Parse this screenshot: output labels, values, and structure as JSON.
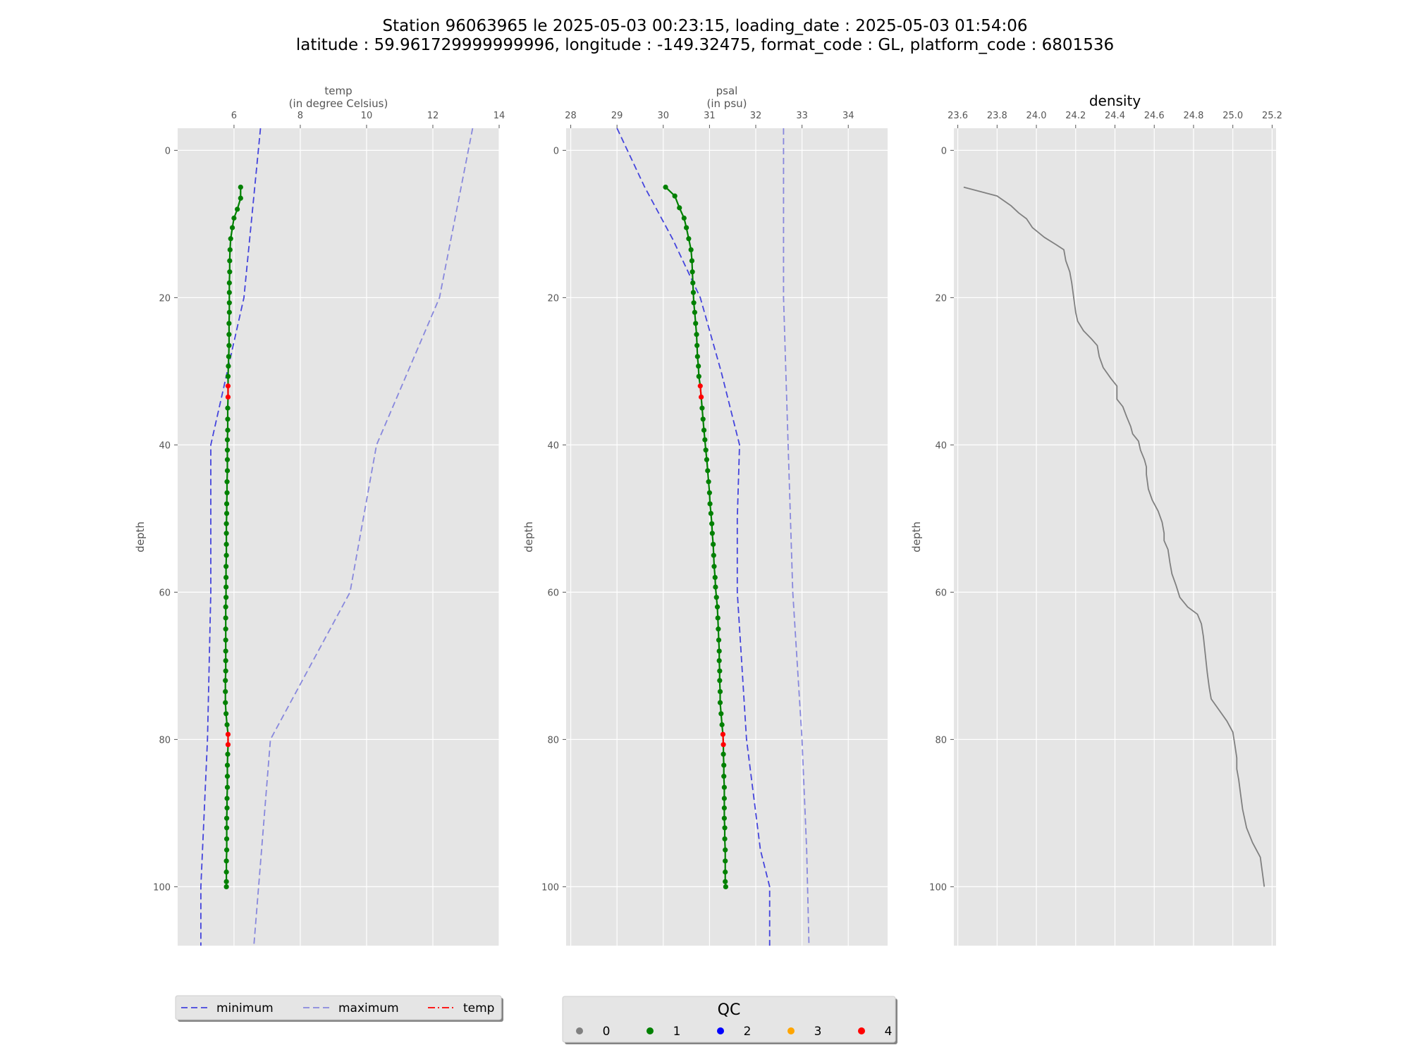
{
  "header": {
    "line1": "Station 96063965 le 2025-05-03 00:23:15, loading_date : 2025-05-03 01:54:06",
    "line2": "latitude : 59.961729999999996, longitude : -149.32475, format_code : GL, platform_code : 6801536"
  },
  "colors": {
    "plot_bg": "#e5e5e5",
    "grid": "#ffffff",
    "minimum": "#4444dd",
    "maximum": "#8888dd",
    "qc0": "#808080",
    "qc1": "#008000",
    "qc2": "#0000ff",
    "qc3": "#ffa500",
    "qc4": "#ff0000",
    "density_line": "#808080",
    "legend_temp": "#ff0000"
  },
  "legend_lines": {
    "items": [
      {
        "label": "minimum",
        "style": "dashed-blue"
      },
      {
        "label": "maximum",
        "style": "dashed-lightblue"
      },
      {
        "label": "temp",
        "style": "dashdot-red"
      }
    ]
  },
  "legend_qc": {
    "title": "QC",
    "items": [
      {
        "label": "0",
        "color": "#808080"
      },
      {
        "label": "1",
        "color": "#008000"
      },
      {
        "label": "2",
        "color": "#0000ff"
      },
      {
        "label": "3",
        "color": "#ffa500"
      },
      {
        "label": "4",
        "color": "#ff0000"
      }
    ]
  },
  "chart_data": [
    {
      "type": "line",
      "title_lines": [
        "temp",
        "(in degree Celsius)"
      ],
      "ylabel": "depth",
      "xlim": [
        4.3,
        14.0
      ],
      "ylim": [
        108,
        -3
      ],
      "xticks": [
        6,
        8,
        10,
        12,
        14
      ],
      "yticks": [
        0,
        20,
        40,
        60,
        80,
        100
      ],
      "grid": true,
      "x_axis_position": "top",
      "y_inverted": true,
      "series": [
        {
          "name": "minimum",
          "role": "minimum",
          "points": [
            [
              6.8,
              -3
            ],
            [
              6.3,
              20
            ],
            [
              5.3,
              40
            ],
            [
              5.3,
              60
            ],
            [
              5.2,
              80
            ],
            [
              5.0,
              100
            ],
            [
              5.0,
              108
            ]
          ]
        },
        {
          "name": "maximum",
          "role": "maximum",
          "points": [
            [
              13.2,
              -3
            ],
            [
              12.2,
              20
            ],
            [
              10.3,
              40
            ],
            [
              9.5,
              60
            ],
            [
              7.1,
              80
            ],
            [
              6.6,
              108
            ]
          ]
        },
        {
          "name": "temp",
          "role": "measured",
          "depths": [
            5,
            6.5,
            8,
            9.2,
            10.5,
            12,
            13.5,
            15,
            16.5,
            18,
            19.3,
            20.7,
            22,
            23.5,
            25,
            26.5,
            28,
            29.3,
            30.7,
            32,
            33.5,
            35,
            36.5,
            38,
            39.3,
            40.7,
            42,
            43.5,
            45,
            46.5,
            48,
            49.3,
            50.7,
            52,
            53.5,
            55,
            56.5,
            58,
            59.3,
            60.7,
            62,
            63.5,
            65,
            66.5,
            68,
            69.3,
            70.7,
            72,
            73.5,
            75,
            76.5,
            78,
            79.3,
            80.7,
            82,
            83.5,
            85,
            86.5,
            88,
            89.3,
            90.7,
            92,
            93.5,
            95,
            96.5,
            98,
            99.3,
            100
          ],
          "values": [
            6.2,
            6.2,
            6.1,
            6.0,
            5.95,
            5.9,
            5.88,
            5.87,
            5.87,
            5.86,
            5.86,
            5.86,
            5.86,
            5.85,
            5.85,
            5.85,
            5.84,
            5.83,
            5.82,
            5.82,
            5.82,
            5.81,
            5.81,
            5.81,
            5.8,
            5.8,
            5.8,
            5.8,
            5.79,
            5.79,
            5.78,
            5.78,
            5.77,
            5.77,
            5.77,
            5.77,
            5.76,
            5.76,
            5.76,
            5.76,
            5.75,
            5.75,
            5.75,
            5.75,
            5.75,
            5.75,
            5.75,
            5.74,
            5.74,
            5.74,
            5.76,
            5.79,
            5.82,
            5.82,
            5.81,
            5.8,
            5.8,
            5.8,
            5.79,
            5.79,
            5.78,
            5.78,
            5.78,
            5.78,
            5.77,
            5.77,
            5.77,
            5.77
          ],
          "qc": [
            1,
            1,
            1,
            1,
            1,
            1,
            1,
            1,
            1,
            1,
            1,
            1,
            1,
            1,
            1,
            1,
            1,
            1,
            1,
            4,
            4,
            1,
            1,
            1,
            1,
            1,
            1,
            1,
            1,
            1,
            1,
            1,
            1,
            1,
            1,
            1,
            1,
            1,
            1,
            1,
            1,
            1,
            1,
            1,
            1,
            1,
            1,
            1,
            1,
            1,
            1,
            1,
            4,
            4,
            1,
            1,
            1,
            1,
            1,
            1,
            1,
            1,
            1,
            1,
            1,
            1,
            1,
            1
          ]
        }
      ]
    },
    {
      "type": "line",
      "title_lines": [
        "psal",
        "(in psu)"
      ],
      "ylabel": "depth",
      "xlim": [
        27.9,
        34.85
      ],
      "ylim": [
        108,
        -3
      ],
      "xticks": [
        28,
        29,
        30,
        31,
        32,
        33,
        34
      ],
      "yticks": [
        0,
        20,
        40,
        60,
        80,
        100
      ],
      "grid": true,
      "x_axis_position": "top",
      "y_inverted": true,
      "series": [
        {
          "name": "minimum",
          "role": "minimum",
          "points": [
            [
              29.0,
              -3
            ],
            [
              29.6,
              5
            ],
            [
              30.2,
              12
            ],
            [
              30.8,
              20
            ],
            [
              31.25,
              30
            ],
            [
              31.65,
              40
            ],
            [
              31.6,
              50
            ],
            [
              31.6,
              60
            ],
            [
              31.8,
              80
            ],
            [
              32.1,
              95
            ],
            [
              32.3,
              100
            ],
            [
              32.3,
              108
            ]
          ]
        },
        {
          "name": "maximum",
          "role": "maximum",
          "points": [
            [
              32.6,
              -3
            ],
            [
              32.6,
              20
            ],
            [
              32.7,
              40
            ],
            [
              32.8,
              60
            ],
            [
              33.0,
              80
            ],
            [
              33.1,
              95
            ],
            [
              33.15,
              108
            ]
          ]
        },
        {
          "name": "psal",
          "role": "measured",
          "depths": [
            5,
            6.2,
            7.8,
            9.2,
            10.5,
            12,
            13.5,
            15,
            16.5,
            18,
            19.3,
            20.7,
            22,
            23.5,
            25,
            26.5,
            28,
            29.3,
            30.7,
            32,
            33.5,
            35,
            36.5,
            38,
            39.3,
            40.7,
            42,
            43.5,
            45,
            46.5,
            48,
            49.3,
            50.7,
            52,
            53.5,
            55,
            56.5,
            58,
            59.3,
            60.7,
            62,
            63.5,
            65,
            66.5,
            68,
            69.3,
            70.7,
            72,
            73.5,
            75,
            76.5,
            78,
            79.3,
            80.7,
            82,
            83.5,
            85,
            86.5,
            88,
            89.3,
            90.7,
            92,
            93.5,
            95,
            96.5,
            98,
            99.3,
            100
          ],
          "values": [
            30.05,
            30.25,
            30.35,
            30.45,
            30.5,
            30.55,
            30.6,
            30.62,
            30.63,
            30.64,
            30.65,
            30.66,
            30.68,
            30.7,
            30.72,
            30.73,
            30.74,
            30.76,
            30.77,
            30.8,
            30.82,
            30.84,
            30.86,
            30.88,
            30.9,
            30.92,
            30.94,
            30.96,
            30.98,
            31.0,
            31.01,
            31.03,
            31.05,
            31.06,
            31.08,
            31.09,
            31.1,
            31.12,
            31.13,
            31.15,
            31.17,
            31.18,
            31.19,
            31.2,
            31.21,
            31.21,
            31.22,
            31.22,
            31.23,
            31.23,
            31.25,
            31.27,
            31.29,
            31.3,
            31.3,
            31.31,
            31.31,
            31.32,
            31.32,
            31.32,
            31.32,
            31.33,
            31.33,
            31.34,
            31.34,
            31.34,
            31.34,
            31.35
          ],
          "qc": [
            1,
            1,
            1,
            1,
            1,
            1,
            1,
            1,
            1,
            1,
            1,
            1,
            1,
            1,
            1,
            1,
            1,
            1,
            1,
            4,
            4,
            1,
            1,
            1,
            1,
            1,
            1,
            1,
            1,
            1,
            1,
            1,
            1,
            1,
            1,
            1,
            1,
            1,
            1,
            1,
            1,
            1,
            1,
            1,
            1,
            1,
            1,
            1,
            1,
            1,
            1,
            1,
            4,
            4,
            1,
            1,
            1,
            1,
            1,
            1,
            1,
            1,
            1,
            1,
            1,
            1,
            1,
            1
          ]
        }
      ]
    },
    {
      "type": "line",
      "title_lines": [
        "density"
      ],
      "ylabel": "depth",
      "xlim": [
        23.58,
        25.22
      ],
      "ylim": [
        108,
        -3
      ],
      "xticks": [
        23.6,
        23.8,
        24.0,
        24.2,
        24.4,
        24.6,
        24.8,
        25.0,
        25.2
      ],
      "xtick_labels": [
        "23.6",
        "23.8",
        "24.0",
        "24.2",
        "24.4",
        "24.6",
        "24.8",
        "25.0",
        "25.2"
      ],
      "yticks": [
        0,
        20,
        40,
        60,
        80,
        100
      ],
      "grid": true,
      "x_axis_position": "top",
      "y_inverted": true,
      "series": [
        {
          "name": "density",
          "role": "density",
          "points": [
            [
              23.63,
              5
            ],
            [
              23.8,
              6.2
            ],
            [
              23.87,
              7.5
            ],
            [
              23.91,
              8.5
            ],
            [
              23.95,
              9.3
            ],
            [
              23.98,
              10.5
            ],
            [
              24.04,
              11.8
            ],
            [
              24.1,
              12.8
            ],
            [
              24.14,
              13.5
            ],
            [
              24.15,
              15
            ],
            [
              24.17,
              16.5
            ],
            [
              24.18,
              18
            ],
            [
              24.19,
              20
            ],
            [
              24.2,
              22
            ],
            [
              24.21,
              23.2
            ],
            [
              24.24,
              24.5
            ],
            [
              24.28,
              25.6
            ],
            [
              24.31,
              26.5
            ],
            [
              24.32,
              28
            ],
            [
              24.34,
              29.5
            ],
            [
              24.38,
              31
            ],
            [
              24.41,
              32
            ],
            [
              24.41,
              33.8
            ],
            [
              24.44,
              34.8
            ],
            [
              24.46,
              36.2
            ],
            [
              24.48,
              37.5
            ],
            [
              24.49,
              38.5
            ],
            [
              24.52,
              39.5
            ],
            [
              24.53,
              40.7
            ],
            [
              24.55,
              42
            ],
            [
              24.56,
              43
            ],
            [
              24.56,
              44
            ],
            [
              24.57,
              46
            ],
            [
              24.59,
              47.5
            ],
            [
              24.62,
              49
            ],
            [
              24.64,
              50.5
            ],
            [
              24.65,
              52
            ],
            [
              24.65,
              53
            ],
            [
              24.67,
              54.2
            ],
            [
              24.68,
              56
            ],
            [
              24.69,
              57.5
            ],
            [
              24.71,
              59
            ],
            [
              24.73,
              60.7
            ],
            [
              24.77,
              62
            ],
            [
              24.82,
              63
            ],
            [
              24.84,
              64.3
            ],
            [
              24.85,
              66
            ],
            [
              24.86,
              68.5
            ],
            [
              24.87,
              71
            ],
            [
              24.88,
              73
            ],
            [
              24.89,
              74.5
            ],
            [
              24.93,
              76
            ],
            [
              24.97,
              77.5
            ],
            [
              25.0,
              79
            ],
            [
              25.01,
              80.7
            ],
            [
              25.02,
              82.5
            ],
            [
              25.02,
              84
            ],
            [
              25.03,
              85.5
            ],
            [
              25.04,
              87.5
            ],
            [
              25.05,
              89.5
            ],
            [
              25.07,
              92
            ],
            [
              25.1,
              94
            ],
            [
              25.14,
              96
            ],
            [
              25.15,
              98
            ],
            [
              25.16,
              100
            ]
          ]
        }
      ]
    }
  ]
}
